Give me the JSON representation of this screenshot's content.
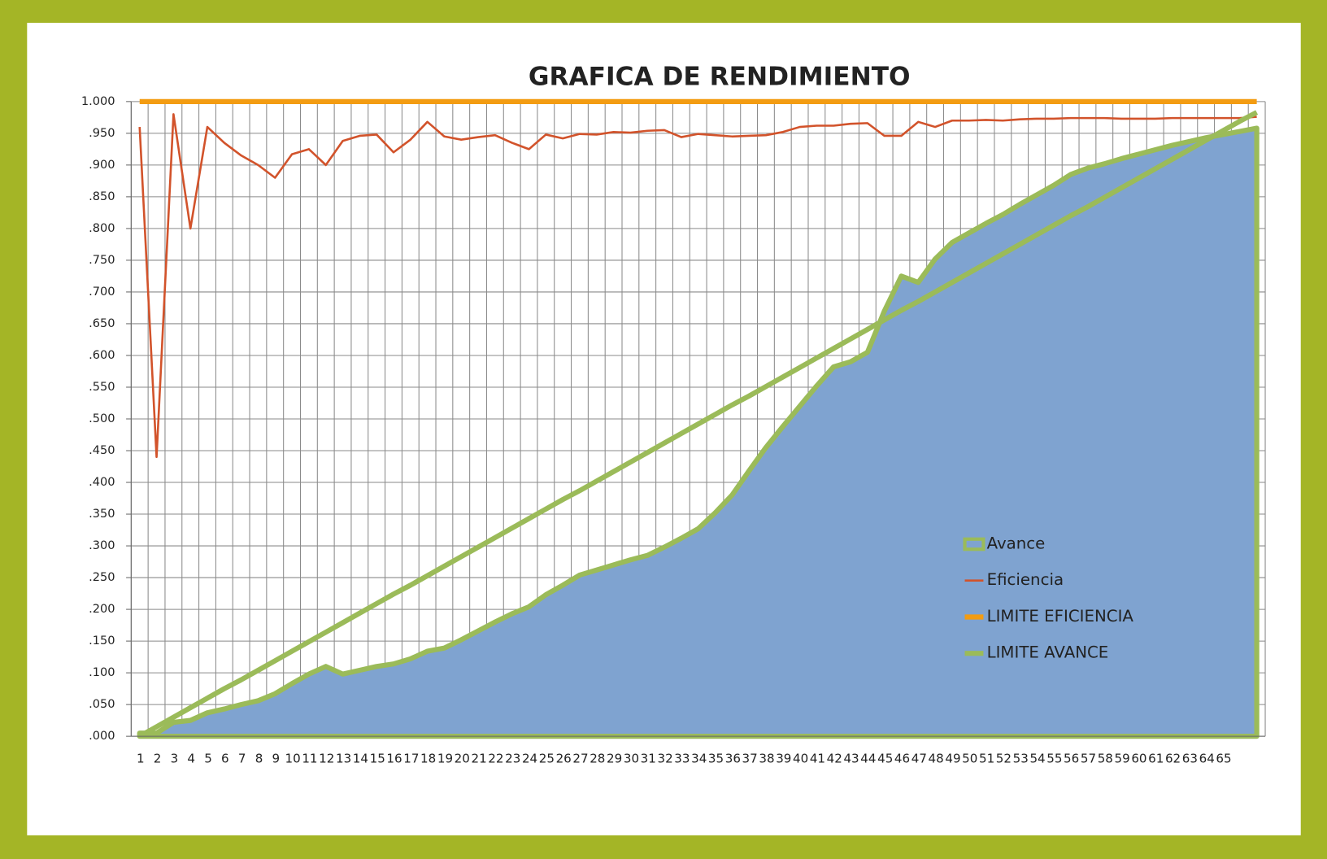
{
  "chart_data": {
    "type": "line",
    "title": "GRAFICA DE RENDIMIENTO",
    "categories": [
      "1",
      "2",
      "3",
      "4",
      "5",
      "6",
      "7",
      "8",
      "9",
      "10",
      "11",
      "12",
      "13",
      "14",
      "15",
      "16",
      "17",
      "18",
      "19",
      "20",
      "21",
      "22",
      "23",
      "24",
      "25",
      "26",
      "27",
      "28",
      "29",
      "30",
      "31",
      "32",
      "33",
      "34",
      "35",
      "36",
      "37",
      "38",
      "39",
      "40",
      "41",
      "42",
      "43",
      "44",
      "45",
      "46",
      "47",
      "48",
      "49",
      "50",
      "51",
      "52",
      "53",
      "54",
      "55",
      "56",
      "57",
      "58",
      "59",
      "60",
      "61",
      "62",
      "63",
      "64",
      "65",
      null,
      null
    ],
    "ylim": [
      0,
      1
    ],
    "yticks": [
      {
        "value": 0,
        "label": ".000"
      },
      {
        "value": 0.05,
        "label": ".050"
      },
      {
        "value": 0.1,
        "label": ".100"
      },
      {
        "value": 0.15,
        "label": ".150"
      },
      {
        "value": 0.2,
        "label": ".200"
      },
      {
        "value": 0.25,
        "label": ".250"
      },
      {
        "value": 0.3,
        "label": ".300"
      },
      {
        "value": 0.35,
        "label": ".350"
      },
      {
        "value": 0.4,
        "label": ".400"
      },
      {
        "value": 0.45,
        "label": ".450"
      },
      {
        "value": 0.5,
        "label": ".500"
      },
      {
        "value": 0.55,
        "label": ".550"
      },
      {
        "value": 0.6,
        "label": ".600"
      },
      {
        "value": 0.65,
        "label": ".650"
      },
      {
        "value": 0.7,
        "label": ".700"
      },
      {
        "value": 0.75,
        "label": ".750"
      },
      {
        "value": 0.8,
        "label": ".800"
      },
      {
        "value": 0.85,
        "label": ".850"
      },
      {
        "value": 0.9,
        "label": ".900"
      },
      {
        "value": 0.95,
        "label": ".950"
      },
      {
        "value": 1,
        "label": "1.000"
      }
    ],
    "grid": true,
    "legend": "lower right",
    "series": [
      {
        "name": "Avance",
        "kind": "area",
        "weight": "heavy",
        "color": "#7fa3d0",
        "edge_color": "#9bbb59",
        "values": [
          0.005,
          0.005,
          0.022,
          0.025,
          0.037,
          0.043,
          0.05,
          0.056,
          0.067,
          0.083,
          0.098,
          0.11,
          0.098,
          0.104,
          0.11,
          0.114,
          0.122,
          0.134,
          0.139,
          0.152,
          0.166,
          0.18,
          0.193,
          0.204,
          0.223,
          0.238,
          0.254,
          0.262,
          0.27,
          0.278,
          0.285,
          0.298,
          0.312,
          0.327,
          0.352,
          0.38,
          0.418,
          0.455,
          0.488,
          0.52,
          0.552,
          0.582,
          0.59,
          0.605,
          0.67,
          0.725,
          0.715,
          0.752,
          0.778,
          0.793,
          0.808,
          0.822,
          0.838,
          0.853,
          0.868,
          0.885,
          0.895,
          0.902,
          0.91,
          0.917,
          0.924,
          0.931,
          0.937,
          0.943,
          0.948,
          0.953,
          0.958
        ]
      },
      {
        "name": "Eficiencia",
        "kind": "line",
        "weight": "light",
        "color": "#d2532b",
        "values": [
          0.96,
          0.44,
          0.98,
          0.8,
          0.96,
          0.935,
          0.915,
          0.9,
          0.88,
          0.917,
          0.925,
          0.9,
          0.938,
          0.946,
          0.948,
          0.92,
          0.94,
          0.968,
          0.945,
          0.94,
          0.944,
          0.947,
          0.935,
          0.925,
          0.948,
          0.942,
          0.949,
          0.948,
          0.952,
          0.951,
          0.954,
          0.955,
          0.944,
          0.949,
          0.947,
          0.945,
          0.946,
          0.947,
          0.952,
          0.96,
          0.962,
          0.962,
          0.965,
          0.966,
          0.946,
          0.946,
          0.968,
          0.96,
          0.97,
          0.97,
          0.971,
          0.97,
          0.972,
          0.973,
          0.973,
          0.974,
          0.974,
          0.974,
          0.973,
          0.973,
          0.973,
          0.974,
          0.974,
          0.974,
          0.974,
          0.974,
          0.976
        ]
      },
      {
        "name": "LIMITE EFICIENCIA",
        "kind": "line",
        "weight": "heavy",
        "color": "#f39c12",
        "values": [
          1,
          1,
          1,
          1,
          1,
          1,
          1,
          1,
          1,
          1,
          1,
          1,
          1,
          1,
          1,
          1,
          1,
          1,
          1,
          1,
          1,
          1,
          1,
          1,
          1,
          1,
          1,
          1,
          1,
          1,
          1,
          1,
          1,
          1,
          1,
          1,
          1,
          1,
          1,
          1,
          1,
          1,
          1,
          1,
          1,
          1,
          1,
          1,
          1,
          1,
          1,
          1,
          1,
          1,
          1,
          1,
          1,
          1,
          1,
          1,
          1,
          1,
          1,
          1,
          1,
          1,
          1
        ]
      },
      {
        "name": "LIMITE AVANCE",
        "kind": "line",
        "weight": "heavy",
        "color": "#9bbb59",
        "values": [
          0,
          0.015,
          0.03,
          0.045,
          0.06,
          0.075,
          0.089,
          0.104,
          0.119,
          0.134,
          0.149,
          0.164,
          0.179,
          0.194,
          0.209,
          0.224,
          0.238,
          0.253,
          0.268,
          0.283,
          0.298,
          0.313,
          0.328,
          0.343,
          0.358,
          0.373,
          0.387,
          0.402,
          0.417,
          0.432,
          0.447,
          0.462,
          0.477,
          0.492,
          0.507,
          0.522,
          0.536,
          0.551,
          0.566,
          0.581,
          0.596,
          0.611,
          0.626,
          0.641,
          0.656,
          0.671,
          0.685,
          0.7,
          0.715,
          0.73,
          0.745,
          0.76,
          0.775,
          0.79,
          0.805,
          0.82,
          0.834,
          0.849,
          0.864,
          0.879,
          0.894,
          0.909,
          0.924,
          0.939,
          0.954,
          0.969,
          0.983
        ]
      }
    ]
  }
}
